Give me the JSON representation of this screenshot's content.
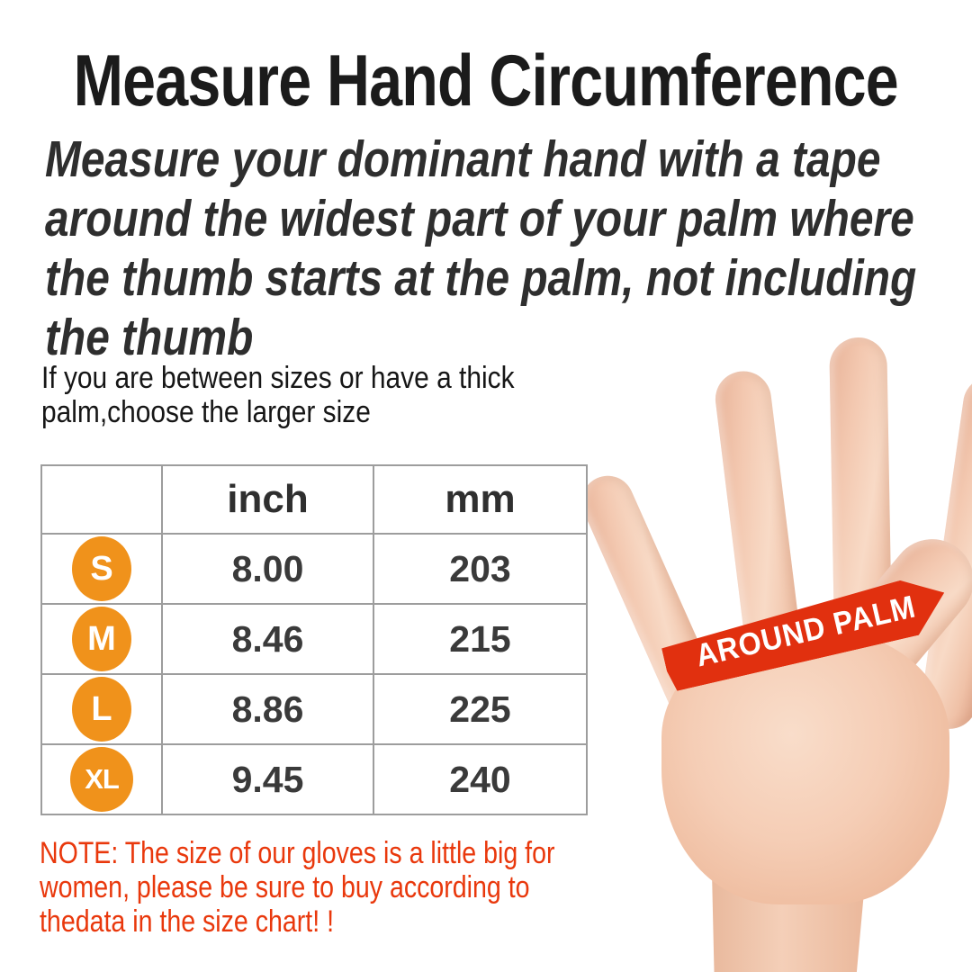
{
  "title": "Measure Hand Circumference",
  "subtitle_lines": [
    "Measure your dominant hand with a tape",
    "around the widest part of your palm where",
    "the thumb starts at the palm, not including",
    "the thumb"
  ],
  "between_sizes_lines": [
    "If you are between sizes or have a thick",
    "palm,choose the larger size"
  ],
  "size_table": {
    "columns": [
      "",
      "inch",
      "mm"
    ],
    "rows": [
      {
        "size": "S",
        "inch": "8.00",
        "mm": "203"
      },
      {
        "size": "M",
        "inch": "8.46",
        "mm": "215"
      },
      {
        "size": "L",
        "inch": "8.86",
        "mm": "225"
      },
      {
        "size": "XL",
        "inch": "9.45",
        "mm": "240"
      }
    ]
  },
  "hand_banner_label": "AROUND PALM",
  "note_lines": [
    "NOTE: The size of our gloves is a little big for",
    "women, please be sure to buy according to",
    "thedata in the size chart! !"
  ],
  "colors": {
    "badge_orange": "#F0921B",
    "banner_red": "#E1300F",
    "note_red": "#E9380C",
    "table_border_gray": "#9D9D9D",
    "text_dark": "#2E2E2E",
    "background": "#FFFFFF"
  }
}
